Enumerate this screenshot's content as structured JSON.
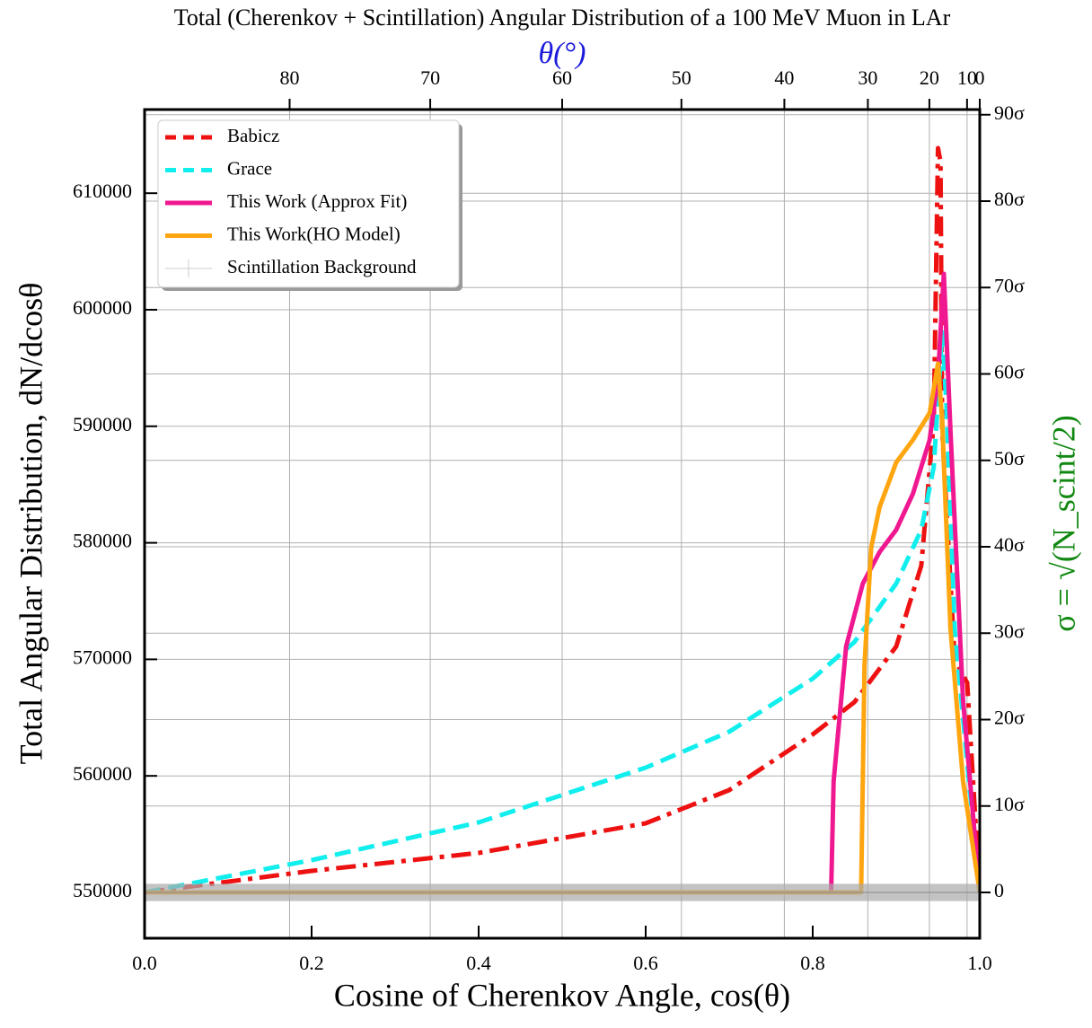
{
  "chart_data": {
    "type": "line",
    "title": "Total (Cherenkov + Scintillation) Angular Distribution of a 100 MeV Muon in LAr",
    "x_label": "Cosine of Cherenkov Angle, cos(θ)",
    "y_label": "Total Angular Distribution, dN/dcosθ",
    "y2_label": "σ = √(N_scint/2)",
    "top_axis": {
      "label": "θ(°)",
      "ticks": [
        80,
        70,
        60,
        50,
        40,
        30,
        20,
        10,
        0
      ],
      "transform": "cos"
    },
    "xlim": [
      0,
      1
    ],
    "xticks": [
      {
        "value": 0,
        "label": "0.0"
      },
      0.2,
      0.4,
      0.6,
      0.8,
      {
        "value": 1,
        "label": "1.0"
      }
    ],
    "ylim": [
      546070,
      617180
    ],
    "yticks": [
      550000,
      560000,
      570000,
      580000,
      590000,
      600000,
      610000
    ],
    "y2lim": [
      -5.3,
      90.6
    ],
    "y2ticks": [
      0,
      {
        "value": 10,
        "label": "10σ"
      },
      {
        "value": 20,
        "label": "20σ"
      },
      {
        "value": 30,
        "label": "30σ"
      },
      {
        "value": 40,
        "label": "40σ"
      },
      {
        "value": 50,
        "label": "50σ"
      },
      {
        "value": 60,
        "label": "60σ"
      },
      {
        "value": 70,
        "label": "70σ"
      },
      {
        "value": 80,
        "label": "80σ"
      },
      {
        "value": 90,
        "label": "90σ"
      }
    ],
    "grid": true,
    "legend": "upper-left",
    "series": [
      {
        "name": "Babicz",
        "color": "#ee1111",
        "style": "dashdot",
        "width": 5,
        "x": [
          0,
          0.2,
          0.4,
          0.6,
          0.7,
          0.8,
          0.85,
          0.9,
          0.93,
          0.945,
          0.95,
          0.953,
          0.955,
          0.97,
          0.985,
          1.0
        ],
        "values": [
          550000,
          551850,
          553390,
          555930,
          558780,
          563560,
          566330,
          571110,
          578040,
          590370,
          613870,
          612710,
          589600,
          570000,
          568000,
          550000
        ]
      },
      {
        "name": "Grace",
        "color": "#11eeee",
        "style": "dashed",
        "width": 5,
        "x": [
          0,
          0.2,
          0.4,
          0.6,
          0.7,
          0.8,
          0.85,
          0.9,
          0.93,
          0.945,
          0.955,
          0.96,
          0.97,
          0.985,
          1.0
        ],
        "values": [
          550000,
          552770,
          556010,
          560710,
          563790,
          568340,
          571490,
          576500,
          581120,
          586520,
          598070,
          591910,
          572650,
          561090,
          550000
        ]
      },
      {
        "name": "This Work (Approx Fit)",
        "color": "#f01890",
        "style": "solid",
        "width": 5,
        "x": [
          0,
          0.822,
          0.825,
          0.84,
          0.86,
          0.88,
          0.9,
          0.92,
          0.94,
          0.95,
          0.957,
          0.965,
          0.98,
          1.0
        ],
        "values": [
          550000,
          550000,
          559550,
          571110,
          576500,
          579200,
          581120,
          584210,
          588830,
          594220,
          603080,
          589600,
          566490,
          550000
        ]
      },
      {
        "name": "This Work(HO Model)",
        "color": "#ffa510",
        "style": "solid",
        "width": 5,
        "x": [
          0,
          0.858,
          0.862,
          0.87,
          0.88,
          0.9,
          0.92,
          0.94,
          0.95,
          0.955,
          0.965,
          0.98,
          1.0
        ],
        "values": [
          550000,
          550000,
          569570,
          579580,
          583050,
          586900,
          588830,
          591140,
          595380,
          590370,
          572650,
          559550,
          550000
        ]
      },
      {
        "name": "Scintillation Background",
        "color": "#aaaaaa",
        "style": "band",
        "width": 1,
        "x": [
          0,
          1
        ],
        "values": [
          550000,
          550000
        ],
        "error": 741
      }
    ]
  }
}
